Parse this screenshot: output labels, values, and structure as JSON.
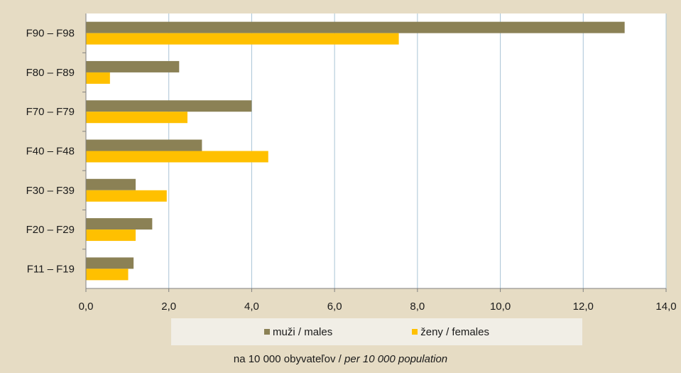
{
  "colors": {
    "males": "#8b8155",
    "females": "#ffc000",
    "grid": "#a9c4d6",
    "plot_bg": "#ffffff"
  },
  "chart_data": {
    "type": "bar",
    "orientation": "horizontal",
    "categories": [
      "F90 – F98",
      "F80 – F89",
      "F70 – F79",
      "F40 – F48",
      "F30 – F39",
      "F20 – F29",
      "F11 – F19"
    ],
    "series": [
      {
        "name": "muži / males",
        "values": [
          13.0,
          2.25,
          4.0,
          2.8,
          1.2,
          1.6,
          1.15
        ]
      },
      {
        "name": "ženy / females",
        "values": [
          7.55,
          0.58,
          2.45,
          4.4,
          1.95,
          1.2,
          1.02
        ]
      }
    ],
    "xlim": [
      0,
      14
    ],
    "xticks": [
      "0,0",
      "2,0",
      "4,0",
      "6,0",
      "8,0",
      "10,0",
      "12,0",
      "14,0"
    ],
    "grid": "vertical",
    "legend_position": "bottom"
  },
  "legend": {
    "males": "muži / males",
    "females": "ženy / females"
  },
  "footnote": {
    "normal": "na 10 000 obyvateľov / ",
    "italic": "per 10 000 population"
  }
}
